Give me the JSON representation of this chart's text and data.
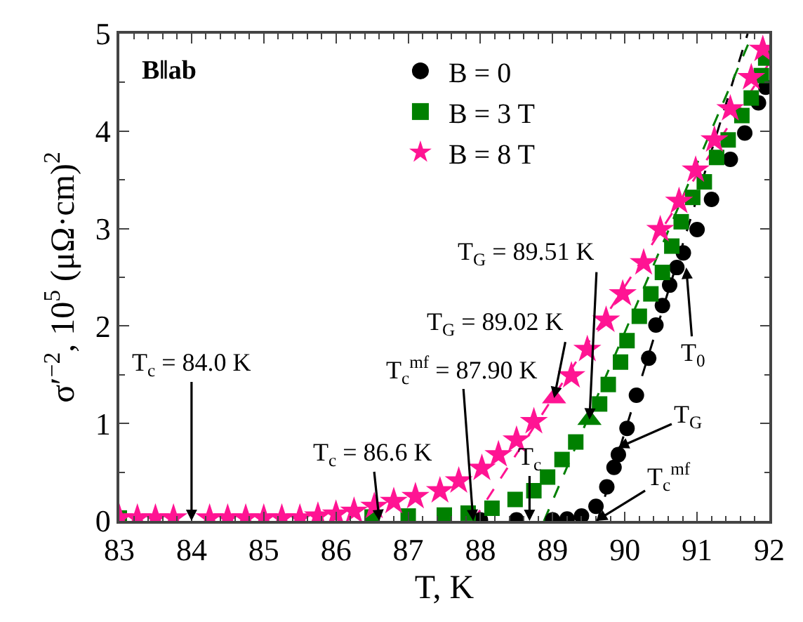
{
  "chart_data": {
    "type": "scatter",
    "xlabel": "T, K",
    "ylabel": "σ′$^{−2}$, 10$^{5}$ (μΩ·cm)$^{2}$",
    "xlim": [
      83,
      92
    ],
    "ylim": [
      0,
      5
    ],
    "xticks": [
      83,
      84,
      85,
      86,
      87,
      88,
      89,
      90,
      91,
      92
    ],
    "yticks": [
      0,
      1,
      2,
      3,
      4,
      5
    ],
    "grid": false,
    "legend": "top",
    "series": [
      {
        "name": "B = 0",
        "color": "#000000",
        "marker": "circle",
        "x": [
          88,
          88.5,
          89,
          89.2,
          89.4,
          89.6,
          89.75,
          89.85,
          89.91,
          90.03,
          90.16,
          90.33,
          90.43,
          90.52,
          90.62,
          90.72,
          90.81,
          91.0,
          91.2,
          91.46,
          91.66,
          91.85,
          91.95
        ],
        "values": [
          0.01,
          0.01,
          0.01,
          0.02,
          0.05,
          0.15,
          0.35,
          0.55,
          0.68,
          0.95,
          1.29,
          1.67,
          2.01,
          2.21,
          2.42,
          2.6,
          2.75,
          2.99,
          3.3,
          3.71,
          3.98,
          4.29,
          4.45
        ]
      },
      {
        "name": "B = 3 T",
        "color": "#008000",
        "marker": "square",
        "x": [
          83,
          83.5,
          84.5,
          85,
          85.5,
          86,
          86.5,
          87,
          87.5,
          87.83,
          88.16,
          88.48,
          88.74,
          88.93,
          89.13,
          89.32,
          89.65,
          89.77,
          89.94,
          90.03,
          90.2,
          90.36,
          90.52,
          90.65,
          90.78,
          90.94,
          91.1,
          91.27,
          91.43,
          91.62,
          91.75,
          91.89,
          91.95
        ],
        "values": [
          0.03,
          null,
          null,
          null,
          null,
          null,
          0.04,
          0.05,
          0.06,
          0.08,
          0.13,
          0.22,
          0.31,
          0.45,
          0.63,
          0.81,
          1.2,
          1.4,
          1.63,
          1.85,
          2.1,
          2.33,
          2.55,
          2.82,
          3.07,
          3.32,
          3.48,
          3.73,
          3.91,
          4.16,
          4.34,
          4.57,
          4.75
        ]
      },
      {
        "name": "B = 8 T",
        "color": "#ff1493",
        "marker": "star",
        "x": [
          83,
          83.25,
          83.5,
          83.75,
          84.25,
          84.5,
          84.75,
          85,
          85.25,
          85.5,
          85.75,
          86,
          86.25,
          86.53,
          86.8,
          87.1,
          87.44,
          87.7,
          88.02,
          88.25,
          88.5,
          88.74,
          89.26,
          89.48,
          89.74,
          89.97,
          90.26,
          90.49,
          90.75,
          90.98,
          91.24,
          91.46,
          91.75,
          91.91
        ],
        "values": [
          0.03,
          0.03,
          0.03,
          0.03,
          0.03,
          0.03,
          0.03,
          0.03,
          0.03,
          0.03,
          0.05,
          0.07,
          0.1,
          0.15,
          0.2,
          0.25,
          0.31,
          0.41,
          0.54,
          0.68,
          0.83,
          1.02,
          1.49,
          1.76,
          2.06,
          2.33,
          2.65,
          2.99,
          3.28,
          3.6,
          3.91,
          4.23,
          4.55,
          4.84
        ]
      },
      {
        "color": "#ff1493",
        "marker": "triangle",
        "x": [
          89.02
        ],
        "values": [
          1.26
        ]
      },
      {
        "color": "#008000",
        "marker": "triangle",
        "x": [
          89.51
        ],
        "values": [
          1.04
        ]
      },
      {
        "type": "line",
        "color": "#000000",
        "marker": "none",
        "line_style": "dashed",
        "x": [
          89.62,
          91.7
        ],
        "values": [
          0,
          5
        ]
      },
      {
        "type": "line",
        "color": "#008000",
        "marker": "none",
        "line_style": "dashed",
        "x": [
          88.88,
          91.77
        ],
        "values": [
          0,
          5
        ]
      },
      {
        "type": "line",
        "color": "#ff1493",
        "marker": "none",
        "line_style": "dashed",
        "x": [
          87.9,
          92
        ],
        "values": [
          0,
          4.7
        ]
      }
    ],
    "annotations": [
      "B‖ab",
      "T$_{c}$ = 84.0 K",
      {
        "text": "T$_{c}$ = 86.6 K",
        "x": 86.6,
        "y": 0
      },
      {
        "text": "T$_{c}$$^{mf}$ = 87.90 K",
        "x": 87.9,
        "y": 0
      },
      {
        "text": "T$_{G}$ = 89.02 K",
        "x": 89.02,
        "y": 1.26
      },
      {
        "text": "T$_{G}$ = 89.51 K",
        "x": 89.51,
        "y": 1.04
      },
      {
        "text": "T$_{c}$",
        "x": 88.68,
        "y": 0
      },
      {
        "text": "T$_{0}$",
        "x": 90.85,
        "y": 2.6
      },
      {
        "text": "T$_{G}$",
        "x": 89.9,
        "y": 0.75
      },
      {
        "text": "T$_{c}$$^{mf}$",
        "x": 89.6,
        "y": 0
      }
    ]
  }
}
